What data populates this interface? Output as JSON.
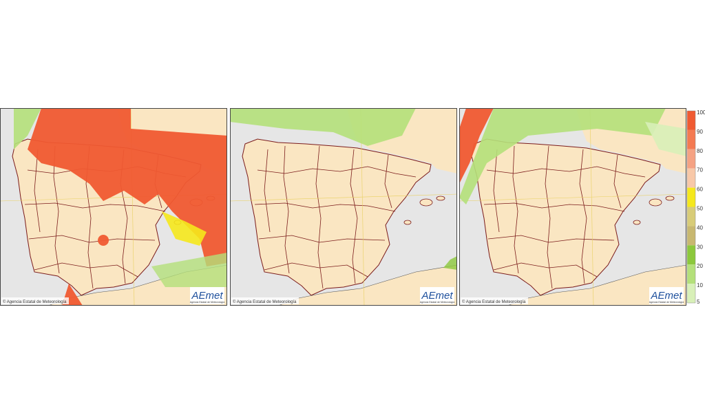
{
  "panels": [
    {
      "credit": "© Agencia Estatal de Meteorología",
      "logo": "AEmet",
      "logo_subtitle": "Agencia Estatal de Meteorología"
    },
    {
      "credit": "© Agencia Estatal de Meteorología",
      "logo": "AEmet",
      "logo_subtitle": "Agencia Estatal de Meteorología"
    },
    {
      "credit": "© Agencia Estatal de Meteorología",
      "logo": "AEmet",
      "logo_subtitle": "Agencia Estatal de Meteorología"
    }
  ],
  "colorbar": {
    "ticks": [
      100,
      90,
      80,
      70,
      60,
      50,
      40,
      30,
      20,
      10,
      5
    ],
    "colors": [
      "#f05a32",
      "#f47a52",
      "#f5a283",
      "#f8c8a8",
      "#f5e81c",
      "#d8cc78",
      "#c8b870",
      "#8cc83c",
      "#b4e07a",
      "#d8f0b8"
    ]
  }
}
